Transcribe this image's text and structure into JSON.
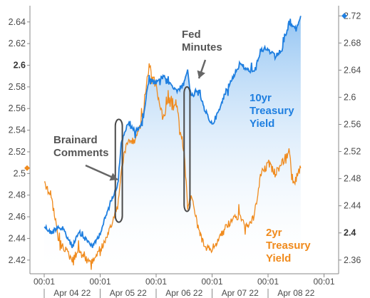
{
  "chart_data": {
    "type": "line",
    "title": "",
    "xlabel": "",
    "ylabel": "",
    "x_time_labels": [
      "00:01",
      "00:01",
      "00:01",
      "00:01",
      "00:01",
      "00:01"
    ],
    "x_date_labels": [
      "Apr 04 22",
      "Apr 05 22",
      "Apr 06 22",
      "Apr 07 22",
      "Apr 08 22"
    ],
    "left_axis": {
      "ticks": [
        "2.42",
        "2.44",
        "2.46",
        "2.48",
        "2.5",
        "2.52",
        "2.54",
        "2.56",
        "2.58",
        "2.6",
        "2.62",
        "2.64"
      ],
      "bold_tick": "2.6",
      "ylim": [
        2.41,
        2.655
      ]
    },
    "right_axis": {
      "ticks": [
        "2.36",
        "2.4",
        "2.44",
        "2.48",
        "2.52",
        "2.56",
        "2.6",
        "2.64",
        "2.68",
        "2.72"
      ],
      "bold_tick": "2.4",
      "ylim": [
        2.344,
        2.735
      ]
    },
    "series": [
      {
        "name": "10yr Treasury Yield",
        "axis": "right",
        "color": "#1f7fe0",
        "last_value_marker": 2.72,
        "points": [
          [
            "Apr 04 22 00:01",
            2.41
          ],
          [
            "Apr 04 22 03:00",
            2.4
          ],
          [
            "Apr 04 22 06:00",
            2.41
          ],
          [
            "Apr 04 22 09:00",
            2.4
          ],
          [
            "Apr 04 22 12:00",
            2.38
          ],
          [
            "Apr 04 22 15:00",
            2.4
          ],
          [
            "Apr 04 22 18:00",
            2.39
          ],
          [
            "Apr 04 22 21:00",
            2.38
          ],
          [
            "Apr 05 22 00:00",
            2.4
          ],
          [
            "Apr 05 22 03:00",
            2.43
          ],
          [
            "Apr 05 22 06:00",
            2.46
          ],
          [
            "Apr 05 22 07:30",
            2.47
          ],
          [
            "Apr 05 22 09:00",
            2.53
          ],
          [
            "Apr 05 22 10:30",
            2.55
          ],
          [
            "Apr 05 22 12:00",
            2.56
          ],
          [
            "Apr 05 22 15:00",
            2.55
          ],
          [
            "Apr 05 22 18:00",
            2.56
          ],
          [
            "Apr 05 22 21:00",
            2.63
          ],
          [
            "Apr 06 22 00:00",
            2.62
          ],
          [
            "Apr 06 22 03:00",
            2.63
          ],
          [
            "Apr 06 22 06:00",
            2.62
          ],
          [
            "Apr 06 22 09:00",
            2.61
          ],
          [
            "Apr 06 22 12:00",
            2.62
          ],
          [
            "Apr 06 22 13:30",
            2.64
          ],
          [
            "Apr 06 22 15:00",
            2.6
          ],
          [
            "Apr 06 22 18:00",
            2.61
          ],
          [
            "Apr 06 22 21:00",
            2.58
          ],
          [
            "Apr 07 22 00:00",
            2.56
          ],
          [
            "Apr 07 22 03:00",
            2.58
          ],
          [
            "Apr 07 22 06:00",
            2.61
          ],
          [
            "Apr 07 22 09:00",
            2.63
          ],
          [
            "Apr 07 22 12:00",
            2.65
          ],
          [
            "Apr 07 22 15:00",
            2.64
          ],
          [
            "Apr 07 22 18:00",
            2.64
          ],
          [
            "Apr 07 22 21:00",
            2.67
          ],
          [
            "Apr 08 22 00:00",
            2.67
          ],
          [
            "Apr 08 22 03:00",
            2.66
          ],
          [
            "Apr 08 22 06:00",
            2.67
          ],
          [
            "Apr 08 22 09:00",
            2.71
          ],
          [
            "Apr 08 22 12:00",
            2.7
          ],
          [
            "Apr 08 22 14:00",
            2.72
          ]
        ]
      },
      {
        "name": "2yr Treasury Yield",
        "axis": "left",
        "color": "#f08a1c",
        "last_value_marker": 2.505,
        "points": [
          [
            "Apr 04 22 00:01",
            2.49
          ],
          [
            "Apr 04 22 03:00",
            2.48
          ],
          [
            "Apr 04 22 06:00",
            2.44
          ],
          [
            "Apr 04 22 09:00",
            2.43
          ],
          [
            "Apr 04 22 12:00",
            2.42
          ],
          [
            "Apr 04 22 15:00",
            2.43
          ],
          [
            "Apr 04 22 18:00",
            2.42
          ],
          [
            "Apr 04 22 21:00",
            2.42
          ],
          [
            "Apr 05 22 00:00",
            2.43
          ],
          [
            "Apr 05 22 03:00",
            2.44
          ],
          [
            "Apr 05 22 06:00",
            2.46
          ],
          [
            "Apr 05 22 07:30",
            2.47
          ],
          [
            "Apr 05 22 09:00",
            2.5
          ],
          [
            "Apr 05 22 10:30",
            2.52
          ],
          [
            "Apr 05 22 12:00",
            2.53
          ],
          [
            "Apr 05 22 15:00",
            2.53
          ],
          [
            "Apr 05 22 18:00",
            2.55
          ],
          [
            "Apr 05 22 21:00",
            2.6
          ],
          [
            "Apr 06 22 00:00",
            2.58
          ],
          [
            "Apr 06 22 03:00",
            2.55
          ],
          [
            "Apr 06 22 06:00",
            2.57
          ],
          [
            "Apr 06 22 09:00",
            2.56
          ],
          [
            "Apr 06 22 12:00",
            2.52
          ],
          [
            "Apr 06 22 13:30",
            2.47
          ],
          [
            "Apr 06 22 15:00",
            2.48
          ],
          [
            "Apr 06 22 18:00",
            2.45
          ],
          [
            "Apr 06 22 21:00",
            2.43
          ],
          [
            "Apr 07 22 00:00",
            2.43
          ],
          [
            "Apr 07 22 03:00",
            2.44
          ],
          [
            "Apr 07 22 06:00",
            2.45
          ],
          [
            "Apr 07 22 09:00",
            2.46
          ],
          [
            "Apr 07 22 12:00",
            2.46
          ],
          [
            "Apr 07 22 15:00",
            2.45
          ],
          [
            "Apr 07 22 18:00",
            2.46
          ],
          [
            "Apr 07 22 21:00",
            2.5
          ],
          [
            "Apr 08 22 00:00",
            2.51
          ],
          [
            "Apr 08 22 03:00",
            2.5
          ],
          [
            "Apr 08 22 06:00",
            2.51
          ],
          [
            "Apr 08 22 09:00",
            2.52
          ],
          [
            "Apr 08 22 11:00",
            2.49
          ],
          [
            "Apr 08 22 14:00",
            2.505
          ]
        ]
      }
    ],
    "annotations": [
      {
        "lines": [
          "Brainard",
          "Comments"
        ],
        "color": "#555555"
      },
      {
        "lines": [
          "Fed",
          "Minutes"
        ],
        "color": "#555555"
      },
      {
        "lines": [
          "10yr",
          "Treasury",
          "Yield"
        ],
        "color": "#1f7fe0"
      },
      {
        "lines": [
          "2yr",
          "Treasury",
          "Yield"
        ],
        "color": "#f08a1c"
      }
    ],
    "highlight_boxes": [
      {
        "x_from": "Apr 05 22 06:30",
        "x_to": "Apr 05 22 09:30",
        "y_from": 2.455,
        "y_to": 2.55,
        "axis": "left"
      },
      {
        "x_from": "Apr 06 22 12:00",
        "x_to": "Apr 06 22 14:30",
        "y_from": 2.465,
        "y_to": 2.58,
        "axis": "left"
      }
    ],
    "grid": false
  }
}
